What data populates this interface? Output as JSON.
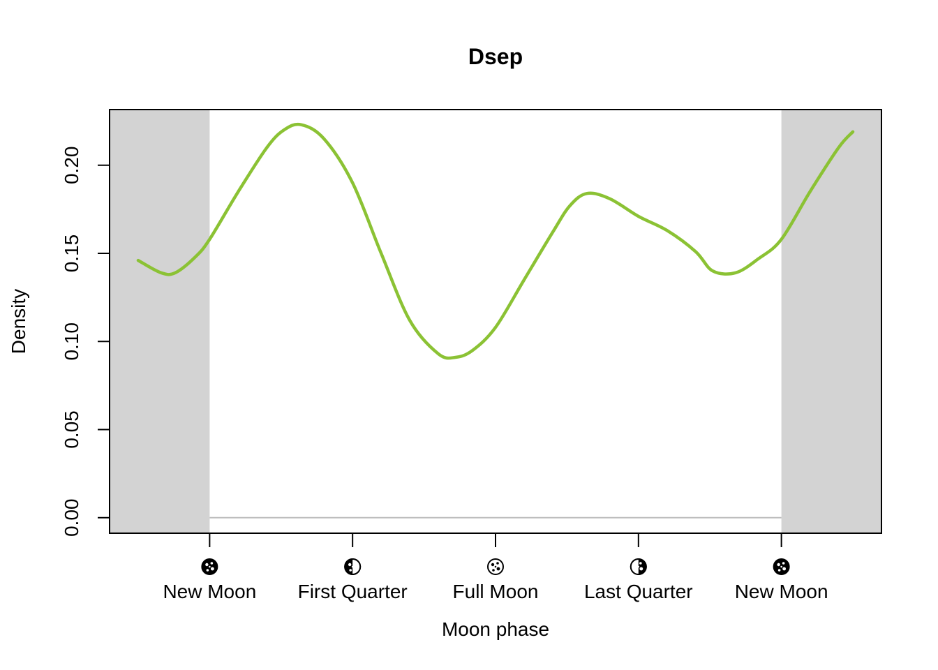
{
  "chart_data": {
    "type": "line",
    "title": "Dsep",
    "xlabel": "Moon phase",
    "ylabel": "Density",
    "xlim": [
      -0.175,
      1.175
    ],
    "ylim": [
      -0.0088,
      0.2316
    ],
    "shaded_regions": [
      [
        -0.175,
        0
      ],
      [
        1,
        1.175
      ]
    ],
    "x_ticks": [
      {
        "value": 0,
        "label": "New Moon",
        "icon": "new-moon-icon"
      },
      {
        "value": 0.25,
        "label": "First Quarter",
        "icon": "first-quarter-moon-icon"
      },
      {
        "value": 0.5,
        "label": "Full Moon",
        "icon": "full-moon-icon"
      },
      {
        "value": 0.75,
        "label": "Last Quarter",
        "icon": "last-quarter-moon-icon"
      },
      {
        "value": 1,
        "label": "New Moon",
        "icon": "new-moon-icon"
      }
    ],
    "y_ticks": [
      {
        "value": 0,
        "label": "0.00"
      },
      {
        "value": 0.05,
        "label": "0.05"
      },
      {
        "value": 0.1,
        "label": "0.10"
      },
      {
        "value": 0.15,
        "label": "0.15"
      },
      {
        "value": 0.2,
        "label": "0.20"
      }
    ],
    "baseline": {
      "y": 0,
      "x_range": [
        0,
        1
      ],
      "color": "#bebebe"
    },
    "series": [
      {
        "color": "#8bc234",
        "x": [
          -0.125,
          -0.085,
          -0.06,
          -0.025,
          0,
          0.05,
          0.1,
          0.13,
          0.16,
          0.2,
          0.25,
          0.3,
          0.35,
          0.4,
          0.43,
          0.46,
          0.5,
          0.55,
          0.6,
          0.63,
          0.66,
          0.7,
          0.75,
          0.8,
          0.85,
          0.88,
          0.92,
          0.96,
          1,
          1.05,
          1.1,
          1.125
        ],
        "y": [
          0.146,
          0.139,
          0.139,
          0.148,
          0.158,
          0.185,
          0.21,
          0.22,
          0.223,
          0.215,
          0.19,
          0.15,
          0.112,
          0.093,
          0.091,
          0.095,
          0.108,
          0.135,
          0.162,
          0.177,
          0.184,
          0.181,
          0.171,
          0.163,
          0.151,
          0.14,
          0.139,
          0.147,
          0.158,
          0.185,
          0.21,
          0.219
        ]
      }
    ]
  }
}
